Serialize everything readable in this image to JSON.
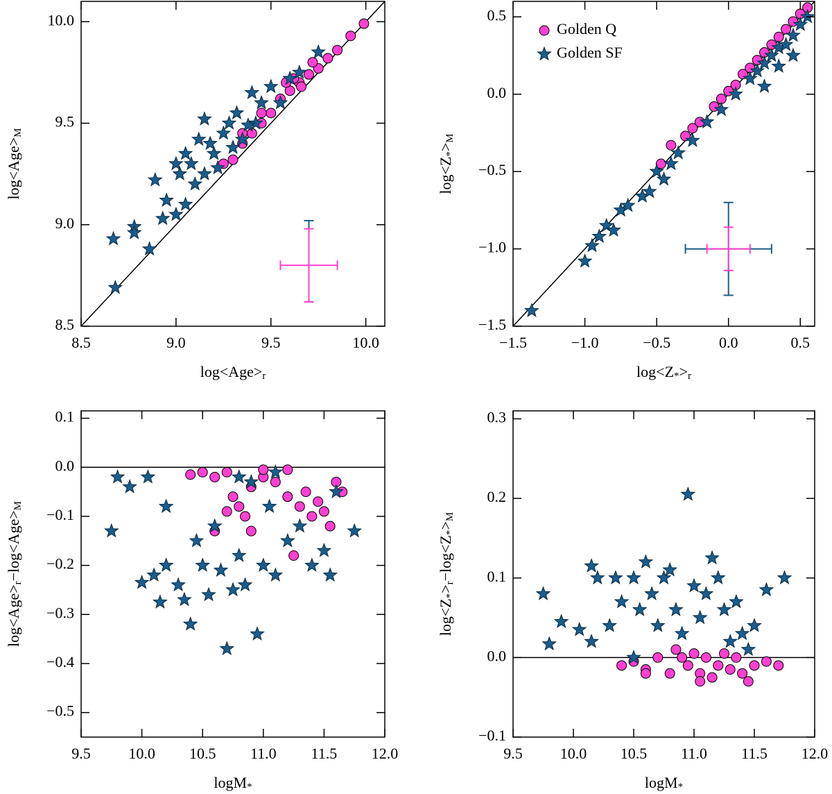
{
  "chart_data": [
    {
      "type": "scatter",
      "xlabel": [
        "log<Age>",
        "r"
      ],
      "ylabel": [
        "log<Age>",
        "M"
      ],
      "xlim": [
        8.5,
        10.1
      ],
      "ylim": [
        8.5,
        10.1
      ],
      "xticks": [
        8.5,
        {
          "value": 9,
          "label": "9.0"
        },
        9.5,
        {
          "value": 10,
          "label": "10.0"
        }
      ],
      "yticks": [
        8.5,
        {
          "value": 9,
          "label": "9.0"
        },
        9.5,
        {
          "value": 10,
          "label": "10.0"
        }
      ],
      "refline": "diagonal",
      "series": [
        {
          "name": "Golden Q",
          "color": "#ff40d0",
          "marker": "circle",
          "x": [
            9.3,
            9.35,
            9.4,
            9.45,
            9.5,
            9.55,
            9.6,
            9.65,
            9.7,
            9.75,
            9.8,
            9.85,
            9.92,
            9.99,
            9.58,
            9.62,
            9.66,
            9.45,
            9.25,
            9.35,
            9.72
          ],
          "values": [
            9.32,
            9.4,
            9.45,
            9.5,
            9.55,
            9.62,
            9.66,
            9.7,
            9.74,
            9.77,
            9.82,
            9.86,
            9.93,
            9.99,
            9.7,
            9.72,
            9.68,
            9.55,
            9.3,
            9.45,
            9.8
          ]
        },
        {
          "name": "Golden SF",
          "color": "#1a5d8c",
          "marker": "star",
          "x": [
            8.67,
            8.68,
            8.78,
            8.78,
            8.86,
            8.89,
            8.93,
            8.95,
            9.0,
            9.02,
            9.05,
            9.08,
            9.1,
            9.12,
            9.15,
            9.18,
            9.2,
            9.22,
            9.25,
            9.28,
            9.3,
            9.32,
            9.35,
            9.4,
            9.42,
            9.45,
            9.5,
            9.55,
            9.6,
            9.65,
            9.75,
            9.0,
            9.05,
            9.15,
            9.38
          ],
          "values": [
            8.93,
            8.69,
            8.99,
            8.96,
            8.88,
            9.22,
            9.03,
            9.12,
            9.05,
            9.25,
            9.1,
            9.3,
            9.2,
            9.42,
            9.52,
            9.4,
            9.35,
            9.28,
            9.45,
            9.5,
            9.38,
            9.55,
            9.42,
            9.65,
            9.5,
            9.6,
            9.68,
            9.6,
            9.72,
            9.75,
            9.85,
            9.3,
            9.35,
            9.25,
            9.49
          ]
        }
      ],
      "errorbars": [
        {
          "color": "#1a5d8c",
          "x": 9.7,
          "y": 8.82,
          "xerr": null,
          "yerr": 0.2
        },
        {
          "color": "#ff40d0",
          "x": 9.7,
          "y": 8.8,
          "xerr": 0.15,
          "yerr": 0.18
        }
      ]
    },
    {
      "type": "scatter",
      "xlabel": [
        "log<Z",
        "*",
        ">",
        "r"
      ],
      "ylabel": [
        "log<Z",
        "*",
        ">",
        "M"
      ],
      "xlim": [
        -1.5,
        0.6
      ],
      "ylim": [
        -1.5,
        0.6
      ],
      "xticks": [
        {
          "value": -1.5,
          "label": "−1.5"
        },
        {
          "value": -1,
          "label": "−1.0"
        },
        {
          "value": -0.5,
          "label": "−0.5"
        },
        {
          "value": 0,
          "label": "0.0"
        },
        0.5
      ],
      "yticks": [
        {
          "value": -1.5,
          "label": "−1.5"
        },
        {
          "value": -1,
          "label": "−1.0"
        },
        {
          "value": -0.5,
          "label": "−0.5"
        },
        {
          "value": 0,
          "label": "0.0"
        },
        0.5
      ],
      "refline": "diagonal",
      "legend": "upper left",
      "series": [
        {
          "name": "Golden Q",
          "color": "#ff40d0",
          "marker": "circle",
          "x": [
            -0.47,
            -0.4,
            -0.25,
            -0.2,
            -0.1,
            -0.05,
            0.0,
            0.05,
            0.1,
            0.15,
            0.2,
            0.25,
            0.3,
            0.35,
            0.4,
            0.45,
            0.5,
            0.55,
            -0.3
          ],
          "values": [
            -0.45,
            -0.33,
            -0.22,
            -0.18,
            -0.08,
            -0.03,
            0.02,
            0.06,
            0.13,
            0.17,
            0.22,
            0.27,
            0.32,
            0.37,
            0.42,
            0.47,
            0.52,
            0.56,
            -0.27
          ]
        },
        {
          "name": "Golden SF",
          "color": "#1a5d8c",
          "marker": "star",
          "x": [
            -1.37,
            -1.0,
            -0.95,
            -0.9,
            -0.85,
            -0.8,
            -0.75,
            -0.7,
            -0.6,
            -0.55,
            -0.5,
            -0.45,
            -0.4,
            -0.35,
            -0.25,
            -0.15,
            -0.05,
            0.05,
            0.15,
            0.2,
            0.25,
            0.3,
            0.35,
            0.4,
            0.45,
            0.5,
            0.55,
            0.45,
            0.35,
            0.25
          ],
          "values": [
            -1.4,
            -1.08,
            -0.98,
            -0.92,
            -0.85,
            -0.88,
            -0.75,
            -0.72,
            -0.66,
            -0.63,
            -0.5,
            -0.55,
            -0.45,
            -0.38,
            -0.3,
            -0.18,
            -0.1,
            0.0,
            0.1,
            0.15,
            0.2,
            0.25,
            0.3,
            0.32,
            0.38,
            0.45,
            0.5,
            0.25,
            0.18,
            0.05
          ]
        }
      ],
      "errorbars": [
        {
          "color": "#1a5d8c",
          "x": 0,
          "y": -1,
          "xerr": 0.3,
          "yerr": 0.3
        },
        {
          "color": "#ff40d0",
          "x": 0,
          "y": -1,
          "xerr": 0.15,
          "yerr": 0.14
        }
      ]
    },
    {
      "type": "scatter",
      "xlabel": [
        "logM",
        "*"
      ],
      "ylabel": [
        "log<Age>",
        "r",
        "−log<Age>",
        "M"
      ],
      "xlim": [
        9.5,
        12.0
      ],
      "ylim": [
        -0.55,
        0.115
      ],
      "xticks": [
        9.5,
        {
          "value": 10,
          "label": "10.0"
        },
        10.5,
        {
          "value": 11,
          "label": "11.0"
        },
        11.5,
        {
          "value": 12,
          "label": "12.0"
        }
      ],
      "yticks": [
        0.1,
        {
          "value": 0,
          "label": "0.0"
        },
        {
          "value": -0.1,
          "label": "−0.1"
        },
        {
          "value": -0.2,
          "label": "−0.2"
        },
        {
          "value": -0.3,
          "label": "−0.3"
        },
        {
          "value": -0.4,
          "label": "−0.4"
        },
        {
          "value": -0.5,
          "label": "−0.5"
        }
      ],
      "hline": 0,
      "series": [
        {
          "name": "Golden Q",
          "color": "#ff40d0",
          "marker": "circle",
          "x": [
            10.4,
            10.5,
            10.6,
            10.7,
            10.75,
            10.8,
            10.85,
            10.9,
            10.6,
            10.7,
            10.9,
            11.0,
            11.1,
            11.2,
            11.25,
            11.3,
            11.35,
            11.4,
            11.45,
            11.5,
            11.55,
            11.6,
            11.65,
            11.0,
            11.2
          ],
          "values": [
            -0.015,
            -0.01,
            -0.02,
            -0.01,
            -0.06,
            -0.08,
            -0.1,
            -0.13,
            -0.13,
            -0.09,
            -0.04,
            -0.02,
            -0.03,
            -0.06,
            -0.18,
            -0.08,
            -0.05,
            -0.1,
            -0.07,
            -0.09,
            -0.12,
            -0.03,
            -0.05,
            -0.005,
            -0.005
          ]
        },
        {
          "name": "Golden SF",
          "color": "#1a5d8c",
          "marker": "star",
          "x": [
            9.75,
            9.8,
            9.9,
            10.0,
            10.05,
            10.1,
            10.15,
            10.2,
            10.2,
            10.3,
            10.35,
            10.4,
            10.45,
            10.5,
            10.55,
            10.6,
            10.65,
            10.7,
            10.75,
            10.8,
            10.85,
            10.9,
            10.95,
            11.0,
            11.05,
            11.1,
            11.2,
            11.3,
            11.4,
            11.5,
            11.6,
            11.75,
            11.55,
            10.8,
            11.1
          ],
          "values": [
            -0.13,
            -0.02,
            -0.04,
            -0.235,
            -0.02,
            -0.22,
            -0.275,
            -0.08,
            -0.2,
            -0.24,
            -0.27,
            -0.32,
            -0.15,
            -0.2,
            -0.26,
            -0.12,
            -0.21,
            -0.37,
            -0.25,
            -0.18,
            -0.24,
            -0.03,
            -0.34,
            -0.2,
            -0.08,
            -0.22,
            -0.15,
            -0.12,
            -0.2,
            -0.17,
            -0.05,
            -0.13,
            -0.22,
            -0.02,
            -0.01
          ]
        }
      ]
    },
    {
      "type": "scatter",
      "xlabel": [
        "logM",
        "*"
      ],
      "ylabel": [
        "log<Z",
        "*",
        ">",
        "r",
        "−log<Z",
        "*",
        ">",
        "M"
      ],
      "xlim": [
        9.5,
        12.0
      ],
      "ylim": [
        -0.1,
        0.31
      ],
      "xticks": [
        9.5,
        {
          "value": 10,
          "label": "10.0"
        },
        10.5,
        {
          "value": 11,
          "label": "11.0"
        },
        11.5,
        {
          "value": 12,
          "label": "12.0"
        }
      ],
      "yticks": [
        {
          "value": -0.1,
          "label": "−0.1"
        },
        {
          "value": 0,
          "label": "0.0"
        },
        0.1,
        0.2,
        0.3
      ],
      "hline": 0,
      "series": [
        {
          "name": "Golden Q",
          "color": "#ff40d0",
          "marker": "circle",
          "x": [
            10.4,
            10.5,
            10.6,
            10.7,
            10.8,
            10.85,
            10.9,
            10.95,
            11.0,
            11.05,
            11.1,
            11.15,
            11.2,
            11.25,
            11.3,
            11.35,
            11.4,
            11.45,
            11.5,
            11.6,
            11.7,
            10.6,
            11.05
          ],
          "values": [
            -0.01,
            -0.005,
            -0.015,
            0.0,
            -0.02,
            0.01,
            0.0,
            -0.01,
            0.005,
            -0.02,
            0.0,
            -0.025,
            -0.01,
            0.005,
            -0.015,
            0.0,
            -0.02,
            -0.03,
            -0.01,
            -0.005,
            -0.01,
            -0.02,
            -0.03
          ]
        },
        {
          "name": "Golden SF",
          "color": "#1a5d8c",
          "marker": "star",
          "x": [
            9.75,
            9.8,
            9.9,
            10.05,
            10.15,
            10.2,
            10.15,
            10.3,
            10.35,
            10.4,
            10.5,
            10.55,
            10.6,
            10.65,
            10.7,
            10.75,
            10.8,
            10.85,
            10.9,
            10.95,
            11.0,
            11.05,
            11.1,
            11.15,
            11.2,
            11.25,
            11.3,
            11.35,
            11.4,
            11.5,
            11.6,
            11.75,
            11.45,
            10.5
          ],
          "values": [
            0.08,
            0.017,
            0.045,
            0.035,
            0.115,
            0.1,
            0.02,
            0.04,
            0.1,
            0.07,
            0.1,
            0.06,
            0.12,
            0.08,
            0.04,
            0.1,
            0.11,
            0.06,
            0.03,
            0.205,
            0.09,
            0.05,
            0.08,
            0.125,
            0.1,
            0.06,
            0.02,
            0.07,
            0.03,
            0.04,
            0.085,
            0.1,
            0.01,
            0.0
          ]
        }
      ]
    }
  ]
}
